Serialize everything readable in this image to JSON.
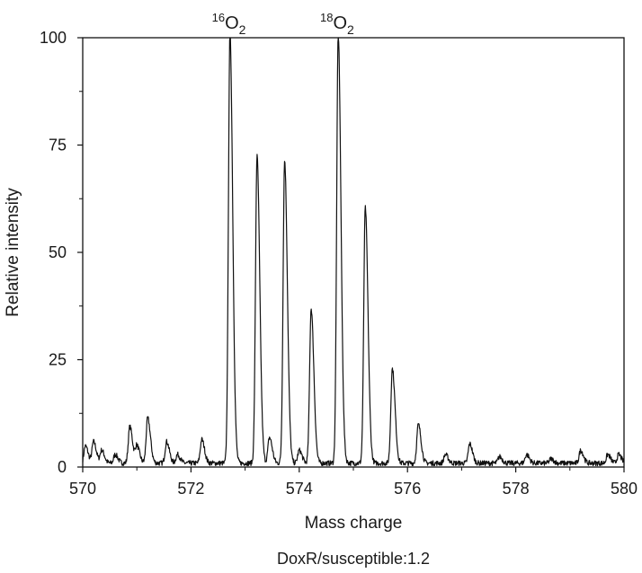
{
  "chart_data": {
    "type": "line",
    "xlabel": "Mass charge",
    "ylabel": "Relative intensity",
    "caption": "DoxR/susceptible:1.2",
    "xlim": [
      570,
      580
    ],
    "ylim": [
      0,
      100
    ],
    "x_ticks": [
      570,
      572,
      574,
      576,
      578,
      580
    ],
    "y_ticks": [
      0,
      25,
      50,
      75,
      100
    ],
    "annotations": [
      {
        "x": 572.7,
        "y": 100,
        "isotope": "16",
        "element": "O",
        "subscript": "2"
      },
      {
        "x": 574.7,
        "y": 100,
        "isotope": "18",
        "element": "O",
        "subscript": "2"
      }
    ],
    "peaks": [
      {
        "x": 570.05,
        "y": 4
      },
      {
        "x": 570.2,
        "y": 5
      },
      {
        "x": 570.35,
        "y": 3
      },
      {
        "x": 570.6,
        "y": 2
      },
      {
        "x": 570.87,
        "y": 8.5
      },
      {
        "x": 571.0,
        "y": 4
      },
      {
        "x": 571.2,
        "y": 10.5
      },
      {
        "x": 571.55,
        "y": 5
      },
      {
        "x": 571.75,
        "y": 2
      },
      {
        "x": 572.2,
        "y": 5.5
      },
      {
        "x": 572.72,
        "y": 100
      },
      {
        "x": 573.22,
        "y": 71.5
      },
      {
        "x": 573.45,
        "y": 6
      },
      {
        "x": 573.73,
        "y": 70.5
      },
      {
        "x": 574.0,
        "y": 3
      },
      {
        "x": 574.22,
        "y": 36
      },
      {
        "x": 574.72,
        "y": 100
      },
      {
        "x": 575.22,
        "y": 59.5
      },
      {
        "x": 575.72,
        "y": 22
      },
      {
        "x": 576.2,
        "y": 9
      },
      {
        "x": 576.7,
        "y": 2
      },
      {
        "x": 577.15,
        "y": 4.5
      },
      {
        "x": 577.7,
        "y": 1.5
      },
      {
        "x": 578.2,
        "y": 2
      },
      {
        "x": 578.65,
        "y": 1
      },
      {
        "x": 579.2,
        "y": 3
      },
      {
        "x": 579.7,
        "y": 2
      },
      {
        "x": 579.9,
        "y": 2
      }
    ]
  }
}
